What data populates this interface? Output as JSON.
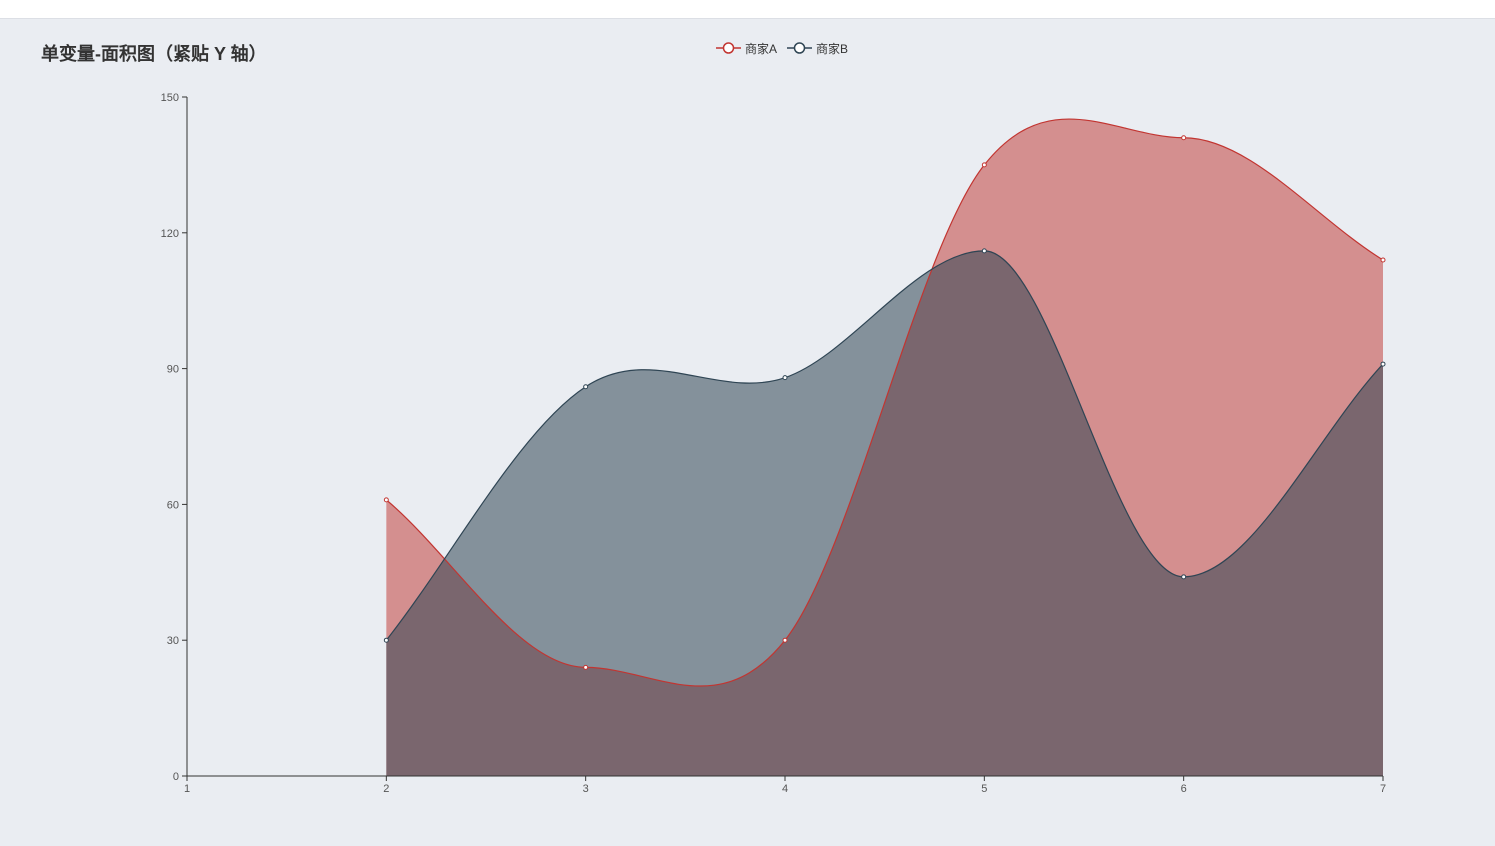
{
  "colors": {
    "series_a_line": "#c23531",
    "series_a_fill": "#d48f8f",
    "series_b_line": "#2f4554",
    "series_b_fill": "#2f4554",
    "axis": "#333333",
    "background": "#eaedf2"
  },
  "chart_data": {
    "type": "area",
    "title": "单变量-面积图（紧贴 Y 轴）",
    "xlabel": "",
    "ylabel": "",
    "x_ticks": [
      "1",
      "2",
      "3",
      "4",
      "5",
      "6",
      "7"
    ],
    "y_ticks": [
      "0",
      "30",
      "60",
      "90",
      "120",
      "150"
    ],
    "xlim": [
      1,
      7
    ],
    "ylim": [
      0,
      150
    ],
    "smooth": true,
    "grid": false,
    "legend_position": "top-center",
    "x": [
      2,
      3,
      4,
      5,
      6,
      7
    ],
    "series": [
      {
        "name": "商家A",
        "values": [
          61,
          24,
          30,
          135,
          141,
          114
        ],
        "color": "#c23531"
      },
      {
        "name": "商家B",
        "values": [
          30,
          86,
          88,
          116,
          44,
          91
        ],
        "color": "#2f4554"
      }
    ]
  }
}
